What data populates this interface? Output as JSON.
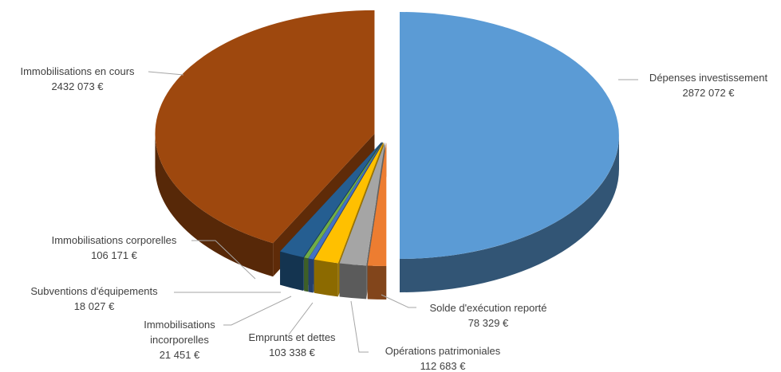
{
  "chart_data": {
    "type": "pie",
    "categories": [
      "Dépenses investissement",
      "Solde d'exécution reporté",
      "Opérations patrimoniales",
      "Emprunts et dettes",
      "Immobilisations incorporelles",
      "Subventions d'équipements",
      "Immobilisations corporelles",
      "Immobilisations en cours"
    ],
    "values": [
      2872072,
      78329,
      112683,
      103338,
      21451,
      18027,
      106171,
      2432073
    ],
    "value_labels": [
      "2872 072 €",
      "78 329 €",
      "112 683 €",
      "103 338 €",
      "21 451 €",
      "18 027 €",
      "106 171 €",
      "2432 073 €"
    ],
    "colors": [
      "#5b9bd5",
      "#ed7d31",
      "#a5a5a5",
      "#ffc000",
      "#4472c4",
      "#70ad47",
      "#255e91",
      "#9e480e"
    ]
  }
}
